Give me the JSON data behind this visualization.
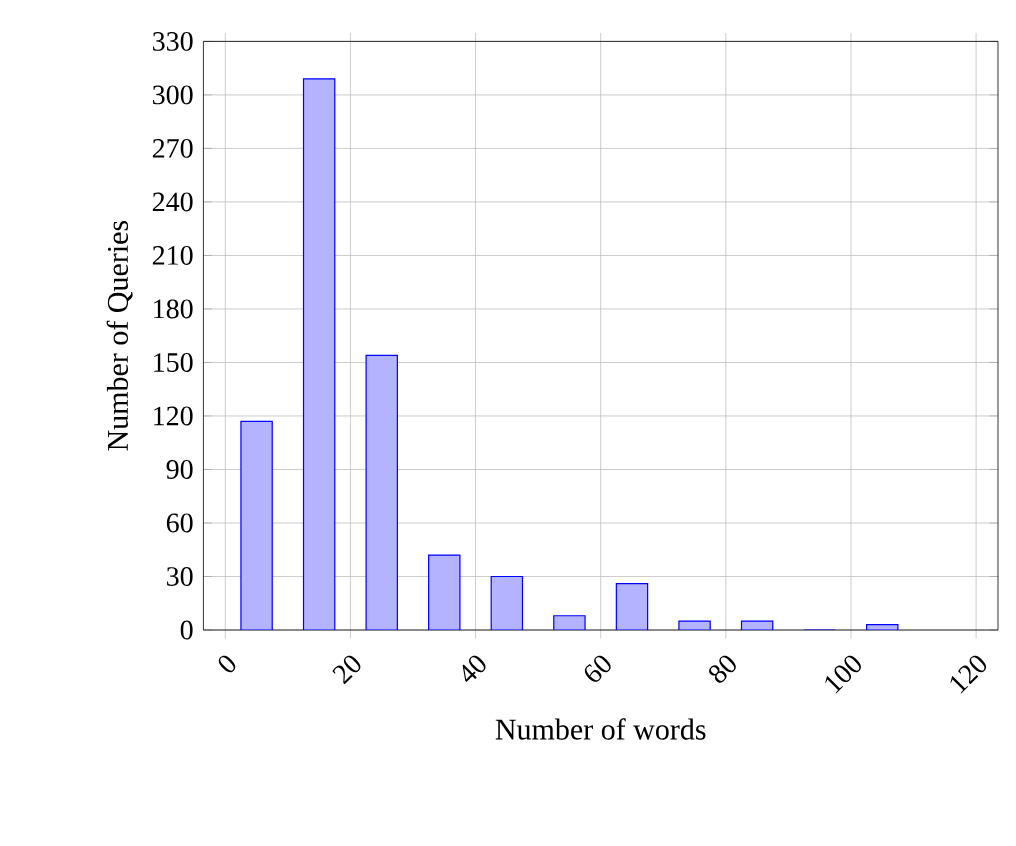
{
  "chart_data": {
    "type": "histogram",
    "xlabel": "Number of words",
    "ylabel": "Number of Queries",
    "bins": [
      0,
      10,
      20,
      30,
      40,
      50,
      60,
      70,
      80,
      90,
      100,
      110
    ],
    "values": [
      117,
      309,
      154,
      42,
      30,
      8,
      26,
      5,
      5,
      0,
      3
    ],
    "color": "#b3b3ff",
    "xlim": [
      -3.5,
      123.5
    ],
    "ylim": [
      0,
      330
    ],
    "xticks": [
      0,
      20,
      40,
      60,
      80,
      100,
      120
    ],
    "yticks": [
      0,
      30,
      60,
      90,
      120,
      150,
      180,
      210,
      240,
      270,
      300,
      330
    ],
    "grid": true
  }
}
